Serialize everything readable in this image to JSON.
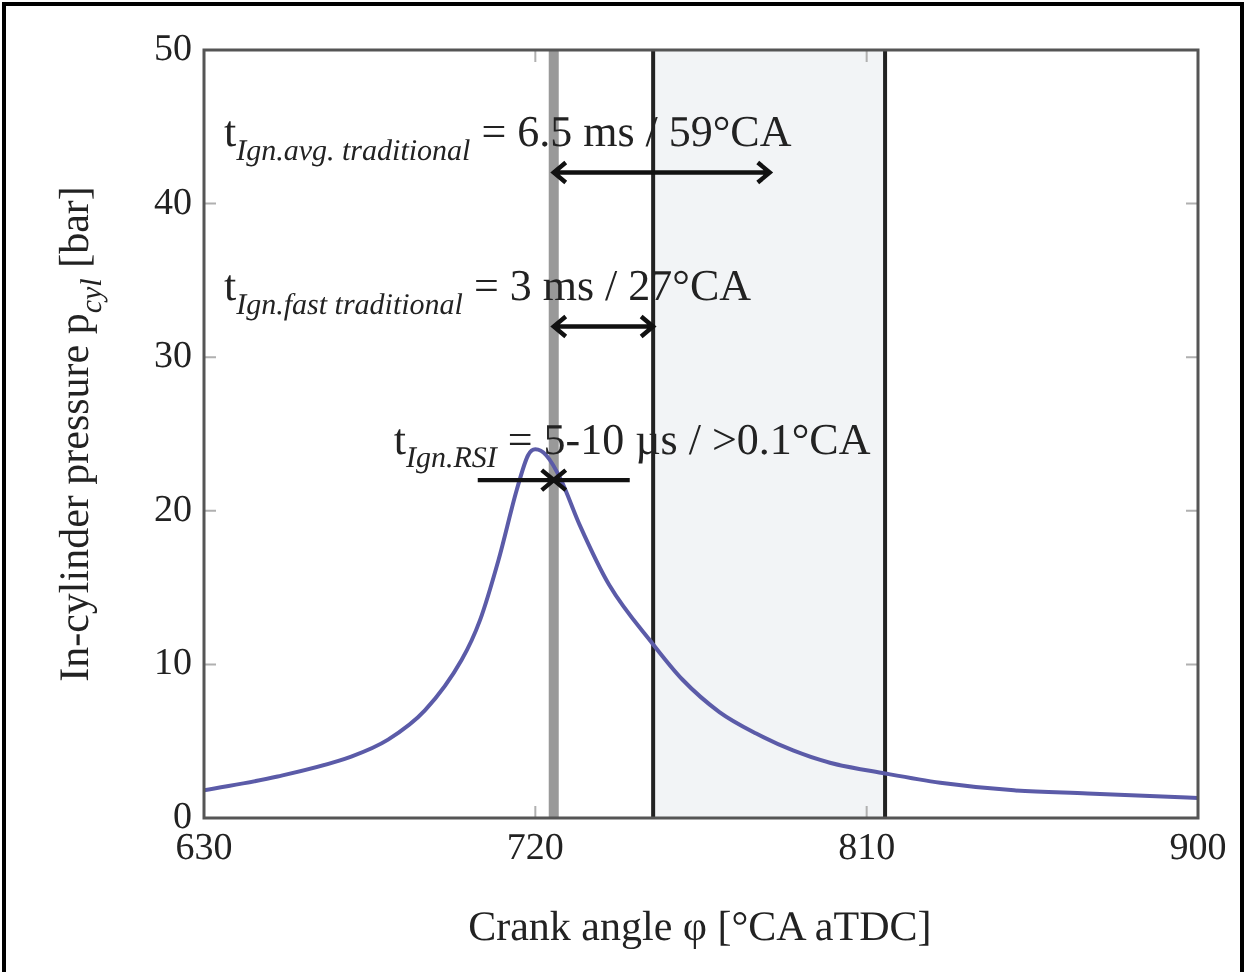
{
  "chart_data": {
    "type": "line",
    "xlabel": "Crank angle φ [°CA aTDC]",
    "ylabel": "In-cylinder pressure p$_{cyl}$ [bar]",
    "x": [
      630,
      650,
      670,
      680,
      690,
      700,
      705,
      710,
      715,
      718,
      720,
      723,
      727,
      732,
      740,
      752,
      760,
      770,
      780,
      790,
      800,
      815,
      830,
      850,
      870,
      900
    ],
    "series": [
      {
        "color": "#5b5ba8",
        "values": [
          1.8,
          2.7,
          4.0,
          5.1,
          7.0,
          10.3,
          12.9,
          16.8,
          21.4,
          23.6,
          24.0,
          23.6,
          22.0,
          19.1,
          15.2,
          11.3,
          9.0,
          6.9,
          5.5,
          4.4,
          3.6,
          2.9,
          2.3,
          1.8,
          1.6,
          1.3
        ]
      }
    ],
    "xlim": [
      630,
      900
    ],
    "xticks": [
      630,
      720,
      810,
      900
    ],
    "ylim": [
      0,
      50
    ],
    "yticks": [
      0,
      10,
      20,
      30,
      40,
      50
    ],
    "grid": false,
    "legend": false,
    "marker": "none",
    "line_style": "solid",
    "bands": [
      {
        "axis": "x",
        "from": 752,
        "to": 815,
        "color": "#f2f4f6"
      }
    ],
    "ref_lines": [
      {
        "axis": "x",
        "value": 725,
        "color": "#999999"
      },
      {
        "axis": "x",
        "value": 752,
        "color": "#222222"
      },
      {
        "axis": "x",
        "value": 815,
        "color": "#222222"
      }
    ],
    "annotations": [
      "t$_{Ign.avg. traditional}$ = 6.5 ms / 59°CA",
      {
        "text": "t$_{Ign.fast traditional}$ = 3 ms / 27°CA",
        "x": 752,
        "y": 32
      },
      {
        "text": "t$_{Ign.RSI}$ = 5-10 µs / >0.1°CA",
        "x": 725,
        "y": 22
      }
    ]
  }
}
